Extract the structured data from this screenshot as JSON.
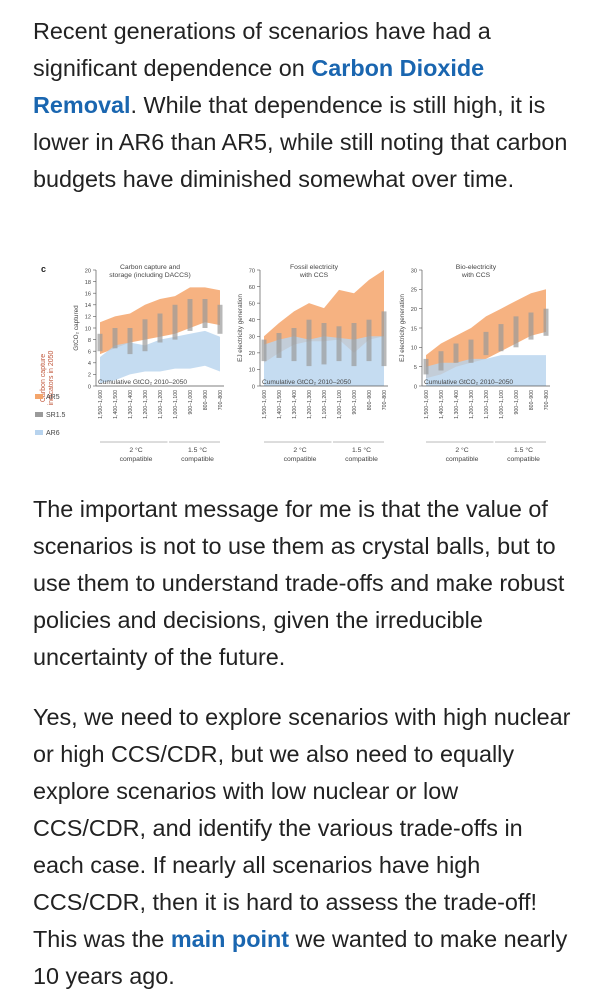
{
  "paragraphs": {
    "p1": {
      "before": "Recent generations of scenarios have had a significant dependence on ",
      "link": "Carbon Dioxide Removal",
      "after": ". While that dependence is still high, it is lower in AR6 than AR5, while still noting that carbon budgets have diminished somewhat over time."
    },
    "p2": {
      "text": "The important message for me is that the value of scenarios is not to use them as crystal balls, but to use them to understand trade-offs and make robust policies and decisions, given the irreducible uncertainty of the future."
    },
    "p3": {
      "before": "Yes, we need to explore scenarios with high nuclear or high CCS/CDR, but we also need to equally explore scenarios with low nuclear or low CCS/CDR, and identify the various trade-offs in each case. If nearly all scenarios have high CCS/CDR, then it is hard to assess the trade-off! This was the ",
      "link": "main point",
      "after": " we wanted to make nearly 10 years ago."
    }
  },
  "colors": {
    "text": "#222222",
    "link": "#1a66b0",
    "ar5": "#f4a56b",
    "ar6": "#b7d3ee",
    "sr15": "#9a9a9a"
  },
  "figure": {
    "panel_letter": "c",
    "row_label_1": "Carbon capture",
    "row_label_2": "indicators in 2050",
    "legend": [
      "AR5",
      "SR1.5",
      "AR6"
    ],
    "xcat_2c": "2 °C",
    "xcat_15c": "1.5 °C",
    "xcat_sub": "compatible",
    "xaxis_caption": "Cumulative GtCO₂ 2010–2050",
    "panels": [
      {
        "title_1": "Carbon capture and",
        "title_2": "storage (including DACCS)",
        "ylabel": "GtCO₂ captured",
        "yticks": [
          "0",
          "2",
          "4",
          "6",
          "8",
          "10",
          "12",
          "14",
          "16",
          "18",
          "20"
        ],
        "ymax": 20
      },
      {
        "title_1": "Fossil electricity",
        "title_2": "with CCS",
        "ylabel": "EJ electricity generation",
        "yticks": [
          "0",
          "10",
          "20",
          "30",
          "40",
          "50",
          "60",
          "70"
        ],
        "ymax": 70
      },
      {
        "title_1": "Bio-electricity",
        "title_2": "with CCS",
        "ylabel": "EJ electricity generation",
        "yticks": [
          "0",
          "5",
          "10",
          "15",
          "20",
          "25",
          "30"
        ],
        "ymax": 30
      }
    ]
  },
  "chart_data": [
    {
      "type": "area",
      "title": "Carbon capture and storage (including DACCS)",
      "xlabel": "Cumulative GtCO2 2010–2050",
      "ylabel": "GtCO2 captured",
      "ylim": [
        0,
        20
      ],
      "categories": [
        "1,500–1,600",
        "1,400–1,500",
        "1,300–1,400",
        "1,200–1,300",
        "1,100–1,200",
        "1,000–1,100",
        "900–1,000",
        "800–900",
        "700–800"
      ],
      "series": [
        {
          "name": "AR5",
          "low": [
            5.5,
            6.5,
            7.5,
            8,
            8.5,
            9,
            10,
            11,
            10.5
          ],
          "high": [
            11,
            12,
            12.5,
            14,
            15,
            15.5,
            17,
            17,
            16.5
          ]
        },
        {
          "name": "AR6",
          "low": [
            0.5,
            1,
            2,
            2.5,
            2.5,
            3,
            3,
            3.5,
            2.5
          ],
          "high": [
            5,
            7,
            7.5,
            7,
            8,
            8.5,
            9,
            9.5,
            8.5
          ]
        },
        {
          "name": "SR1.5",
          "low": [
            6,
            6.5,
            5.5,
            6,
            7.5,
            8,
            9.5,
            10,
            9
          ],
          "high": [
            9,
            10,
            10,
            11.5,
            12.5,
            14,
            15,
            15,
            14
          ]
        }
      ]
    },
    {
      "type": "area",
      "title": "Fossil electricity with CCS",
      "xlabel": "Cumulative GtCO2 2010–2050",
      "ylabel": "EJ electricity generation",
      "ylim": [
        0,
        70
      ],
      "categories": [
        "1,500–1,600",
        "1,400–1,500",
        "1,300–1,400",
        "1,200–1,300",
        "1,100–1,200",
        "1,000–1,100",
        "900–1,000",
        "800–900",
        "700–800"
      ],
      "series": [
        {
          "name": "AR5",
          "low": [
            14,
            20,
            25,
            27,
            27,
            28,
            20,
            28,
            30
          ],
          "high": [
            30,
            38,
            45,
            50,
            47,
            58,
            56,
            64,
            70
          ]
        },
        {
          "name": "AR6",
          "low": [
            0,
            0,
            0,
            0,
            0,
            0,
            0,
            0,
            0
          ],
          "high": [
            25,
            28,
            30,
            28,
            30,
            29,
            28,
            30,
            30
          ]
        },
        {
          "name": "SR1.5",
          "low": [
            15,
            17,
            15,
            12,
            13,
            15,
            12,
            15,
            12
          ],
          "high": [
            28,
            32,
            35,
            40,
            38,
            36,
            38,
            40,
            45
          ]
        }
      ]
    },
    {
      "type": "area",
      "title": "Bio-electricity with CCS",
      "xlabel": "Cumulative GtCO2 2010–2050",
      "ylabel": "EJ electricity generation",
      "ylim": [
        0,
        30
      ],
      "categories": [
        "1,500–1,600",
        "1,400–1,500",
        "1,300–1,400",
        "1,200–1,300",
        "1,100–1,200",
        "1,000–1,100",
        "900–1,000",
        "800–900",
        "700–800"
      ],
      "series": [
        {
          "name": "AR5",
          "low": [
            2,
            3,
            5,
            6,
            7,
            9,
            11,
            13,
            14
          ],
          "high": [
            8,
            11,
            13,
            15,
            18,
            20,
            22,
            24,
            25
          ]
        },
        {
          "name": "AR6",
          "low": [
            0,
            0,
            0,
            0,
            0,
            0,
            0,
            0,
            0
          ],
          "high": [
            5,
            6,
            6,
            7,
            7,
            8,
            8,
            8,
            8
          ]
        },
        {
          "name": "SR1.5",
          "low": [
            3,
            4,
            6,
            6,
            8,
            9,
            10,
            12,
            13
          ],
          "high": [
            7,
            9,
            11,
            12,
            14,
            16,
            18,
            19,
            20
          ]
        }
      ]
    }
  ]
}
